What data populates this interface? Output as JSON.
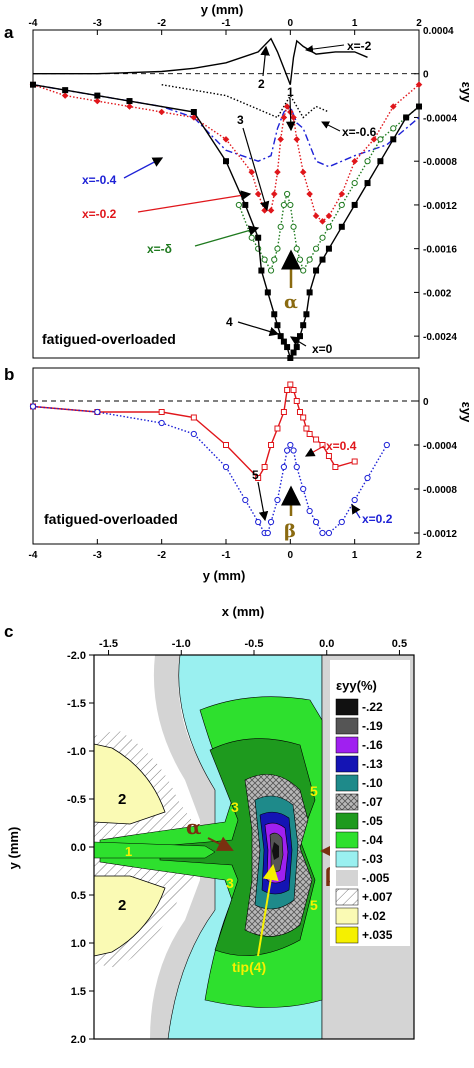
{
  "panels": {
    "a": "a",
    "b": "b",
    "c": "c"
  },
  "colors": {
    "black": "#000000",
    "red": "#e0161b",
    "blue": "#1e22d6",
    "green": "#1f7a1f",
    "brown": "#8a6a10"
  },
  "chart_data": [
    {
      "id": "a",
      "type": "line",
      "xlabel": "y (mm)",
      "ylabel": "εyy",
      "xlim": [
        -4,
        2
      ],
      "ylim": [
        -0.0026,
        0.0004
      ],
      "x_ticks": [
        "-4",
        "-3",
        "-2",
        "-1",
        "0",
        "1",
        "2"
      ],
      "y_ticks": [
        "0.0004",
        "0",
        "-0.0004",
        "-0.0008",
        "-0.0012",
        "-0.0016",
        "-0.002",
        "-0.0024"
      ],
      "y_tick_values": [
        0.0004,
        0,
        -0.0004,
        -0.0008,
        -0.0012,
        -0.0016,
        -0.002,
        -0.0024
      ],
      "annotation": "fatigued-overloaded",
      "series": [
        {
          "name": "x=-2",
          "color": "black",
          "marker": "none",
          "style": "solid",
          "x": [
            -4,
            -3,
            -2,
            -1.5,
            -1,
            -0.5,
            -0.3,
            -0.2,
            -0.1,
            0,
            0.05,
            0.1,
            0.2,
            0.4,
            0.7,
            1,
            1.2
          ],
          "y": [
            0,
            0,
            2e-05,
            5e-05,
            0.0001,
            0.0002,
            0.00032,
            0.0002,
            5e-05,
            -0.0001,
            0.00015,
            0.0003,
            0.00025,
            0.00018,
            0.0002,
            0.0002,
            0.00015
          ]
        },
        {
          "name": "x=-0.6",
          "color": "black",
          "marker": "none",
          "style": "dotted",
          "x": [
            -2,
            -1.5,
            -1,
            -0.6,
            -0.4,
            -0.2,
            -0.1,
            0,
            0.1,
            0.2,
            0.4,
            0.6
          ],
          "y": [
            -0.0001,
            -0.00015,
            -0.0002,
            -0.0003,
            -0.00035,
            -0.0004,
            -0.0003,
            -0.0002,
            -0.0003,
            -0.0004,
            -0.0003,
            -0.00035
          ]
        },
        {
          "name": "x=-0.4",
          "color": "blue",
          "marker": "none",
          "style": "dashdot",
          "x": [
            -4,
            -3,
            -2,
            -1.5,
            -1,
            -0.5,
            -0.3,
            -0.2,
            -0.1,
            0,
            0.1,
            0.2,
            0.4,
            0.6,
            1,
            1.5,
            2
          ],
          "y": [
            -0.0001,
            -0.0002,
            -0.0003,
            -0.0004,
            -0.0007,
            -0.0008,
            -0.00075,
            -0.0005,
            -0.00035,
            -0.0003,
            -0.00045,
            -0.0005,
            -0.0008,
            -0.00085,
            -0.00075,
            -0.00065,
            -0.0004
          ]
        },
        {
          "name": "x=-0.2",
          "color": "red",
          "marker": "diamond",
          "style": "dotted",
          "x": [
            -4,
            -3.5,
            -3,
            -2.5,
            -2,
            -1.5,
            -1,
            -0.6,
            -0.5,
            -0.4,
            -0.3,
            -0.25,
            -0.2,
            -0.15,
            -0.1,
            -0.05,
            0,
            0.05,
            0.1,
            0.2,
            0.3,
            0.4,
            0.5,
            0.6,
            0.8,
            1,
            1.3,
            1.6,
            2
          ],
          "y": [
            -0.0001,
            -0.0002,
            -0.00025,
            -0.0003,
            -0.00035,
            -0.0004,
            -0.0006,
            -0.0009,
            -0.0011,
            -0.00125,
            -0.00125,
            -0.0011,
            -0.0009,
            -0.0006,
            -0.0004,
            -0.0003,
            -0.00035,
            -0.0004,
            -0.0006,
            -0.0009,
            -0.0011,
            -0.0013,
            -0.00135,
            -0.0013,
            -0.0011,
            -0.0008,
            -0.0006,
            -0.0003,
            -0.0001
          ]
        },
        {
          "name": "x=-δ",
          "color": "green",
          "marker": "circle",
          "style": "dotted",
          "x": [
            -0.8,
            -0.6,
            -0.5,
            -0.4,
            -0.3,
            -0.25,
            -0.2,
            -0.15,
            -0.1,
            -0.05,
            0,
            0.05,
            0.1,
            0.15,
            0.2,
            0.3,
            0.4,
            0.5,
            0.6,
            0.8,
            1,
            1.2,
            1.4,
            1.6,
            1.8,
            2
          ],
          "y": [
            -0.0012,
            -0.0015,
            -0.0016,
            -0.0017,
            -0.0018,
            -0.0017,
            -0.0016,
            -0.0014,
            -0.0012,
            -0.0011,
            -0.0012,
            -0.0014,
            -0.0016,
            -0.0017,
            -0.0018,
            -0.0017,
            -0.0016,
            -0.0015,
            -0.0014,
            -0.0012,
            -0.001,
            -0.0008,
            -0.0006,
            -0.0005,
            -0.0004,
            -0.0003
          ]
        },
        {
          "name": "x=0",
          "color": "black",
          "marker": "square",
          "style": "solid",
          "x": [
            -4,
            -3.5,
            -3,
            -2.5,
            -1.5,
            -1,
            -0.7,
            -0.5,
            -0.45,
            -0.35,
            -0.25,
            -0.2,
            -0.15,
            -0.1,
            -0.05,
            0,
            0.05,
            0.1,
            0.15,
            0.2,
            0.25,
            0.3,
            0.4,
            0.5,
            0.6,
            0.8,
            1,
            1.2,
            1.4,
            1.6,
            1.8,
            2
          ],
          "y": [
            -0.0001,
            -0.00015,
            -0.0002,
            -0.00025,
            -0.00035,
            -0.0008,
            -0.0012,
            -0.0015,
            -0.0018,
            -0.002,
            -0.0022,
            -0.0023,
            -0.0024,
            -0.00245,
            -0.0025,
            -0.0026,
            -0.00255,
            -0.0025,
            -0.0024,
            -0.0023,
            -0.0022,
            -0.002,
            -0.0018,
            -0.0017,
            -0.0016,
            -0.0014,
            -0.0012,
            -0.001,
            -0.0008,
            -0.0006,
            -0.0004,
            -0.0003
          ]
        }
      ],
      "labels": [
        "1",
        "2",
        "3",
        "4"
      ],
      "arrow_label": "α"
    },
    {
      "id": "b",
      "type": "line",
      "xlabel": "y (mm)",
      "ylabel": "εyy",
      "xlim": [
        -4,
        2
      ],
      "ylim": [
        -0.0013,
        0.0003
      ],
      "x_ticks": [
        "-4",
        "-3",
        "-2",
        "-1",
        "0",
        "1",
        "2"
      ],
      "y_ticks": [
        "0",
        "-0.0004",
        "-0.0008",
        "-0.0012"
      ],
      "y_tick_values": [
        0,
        -0.0004,
        -0.0008,
        -0.0012
      ],
      "annotation": "fatigued-overloaded",
      "series": [
        {
          "name": "x=0.4",
          "color": "red",
          "marker": "square",
          "style": "solid",
          "x": [
            -4,
            -3,
            -2,
            -1.5,
            -1,
            -0.5,
            -0.4,
            -0.3,
            -0.2,
            -0.1,
            -0.05,
            0,
            0.05,
            0.1,
            0.15,
            0.2,
            0.25,
            0.3,
            0.4,
            0.5,
            0.6,
            0.7,
            1
          ],
          "y": [
            -5e-05,
            -0.0001,
            -0.0001,
            -0.00015,
            -0.0004,
            -0.0007,
            -0.0006,
            -0.0004,
            -0.00025,
            -0.0001,
            0.0001,
            0.00015,
            0.0001,
            0,
            -0.0001,
            -0.00015,
            -0.00025,
            -0.0003,
            -0.00035,
            -0.0004,
            -0.0005,
            -0.0006,
            -0.00055
          ]
        },
        {
          "name": "x=0.2",
          "color": "blue",
          "marker": "circle",
          "style": "dotted",
          "x": [
            -4,
            -3,
            -2,
            -1.5,
            -1,
            -0.7,
            -0.5,
            -0.4,
            -0.35,
            -0.3,
            -0.2,
            -0.1,
            -0.05,
            0,
            0.05,
            0.1,
            0.2,
            0.3,
            0.4,
            0.5,
            0.6,
            0.8,
            1,
            1.2,
            1.5
          ],
          "y": [
            -5e-05,
            -0.0001,
            -0.0002,
            -0.0003,
            -0.0006,
            -0.0009,
            -0.0011,
            -0.0012,
            -0.0012,
            -0.0011,
            -0.0009,
            -0.0006,
            -0.00045,
            -0.0004,
            -0.00045,
            -0.0006,
            -0.0008,
            -0.001,
            -0.0011,
            -0.0012,
            -0.0012,
            -0.0011,
            -0.0009,
            -0.0007,
            -0.0004
          ]
        }
      ],
      "labels": [
        "5"
      ],
      "arrow_label": "β"
    },
    {
      "id": "c",
      "type": "heatmap",
      "xlabel": "x (mm)",
      "ylabel": "y (mm)",
      "xlim": [
        -1.5,
        0.5
      ],
      "ylim": [
        -2.0,
        2.0
      ],
      "x_ticks": [
        "-1.5",
        "-1.0",
        "-0.5",
        "0.0",
        "0.5"
      ],
      "y_ticks": [
        "-2.0",
        "-1.5",
        "-1.0",
        "-0.5",
        "0.0",
        "0.5",
        "1.0",
        "1.5",
        "2.0"
      ],
      "legend_title": "εyy(%)",
      "legend": [
        {
          "label": "-.22",
          "color": "#111111"
        },
        {
          "label": "-.19",
          "color": "#555555"
        },
        {
          "label": "-.16",
          "color": "#a020f0"
        },
        {
          "label": "-.13",
          "color": "#1414b4"
        },
        {
          "label": "-.10",
          "color": "#1e8a8a"
        },
        {
          "label": "-.07",
          "color": "#b0b0b0"
        },
        {
          "label": "-.05",
          "color": "#1e9a1e"
        },
        {
          "label": "-.04",
          "color": "#2ee02e"
        },
        {
          "label": "-.03",
          "color": "#9af0f0"
        },
        {
          "label": "-.005",
          "color": "#d4d4d4"
        },
        {
          "label": "+.007",
          "color": "#ffffff"
        },
        {
          "label": "+.02",
          "color": "#fafab4"
        },
        {
          "label": "+.035",
          "color": "#f5f000"
        }
      ],
      "region_labels": {
        "r1": "1",
        "r2a": "2",
        "r2b": "2",
        "r3a": "3",
        "r3b": "3",
        "r5a": "5",
        "r5b": "5",
        "tip": "tip(4)",
        "alpha": "α",
        "beta": "β"
      }
    }
  ]
}
